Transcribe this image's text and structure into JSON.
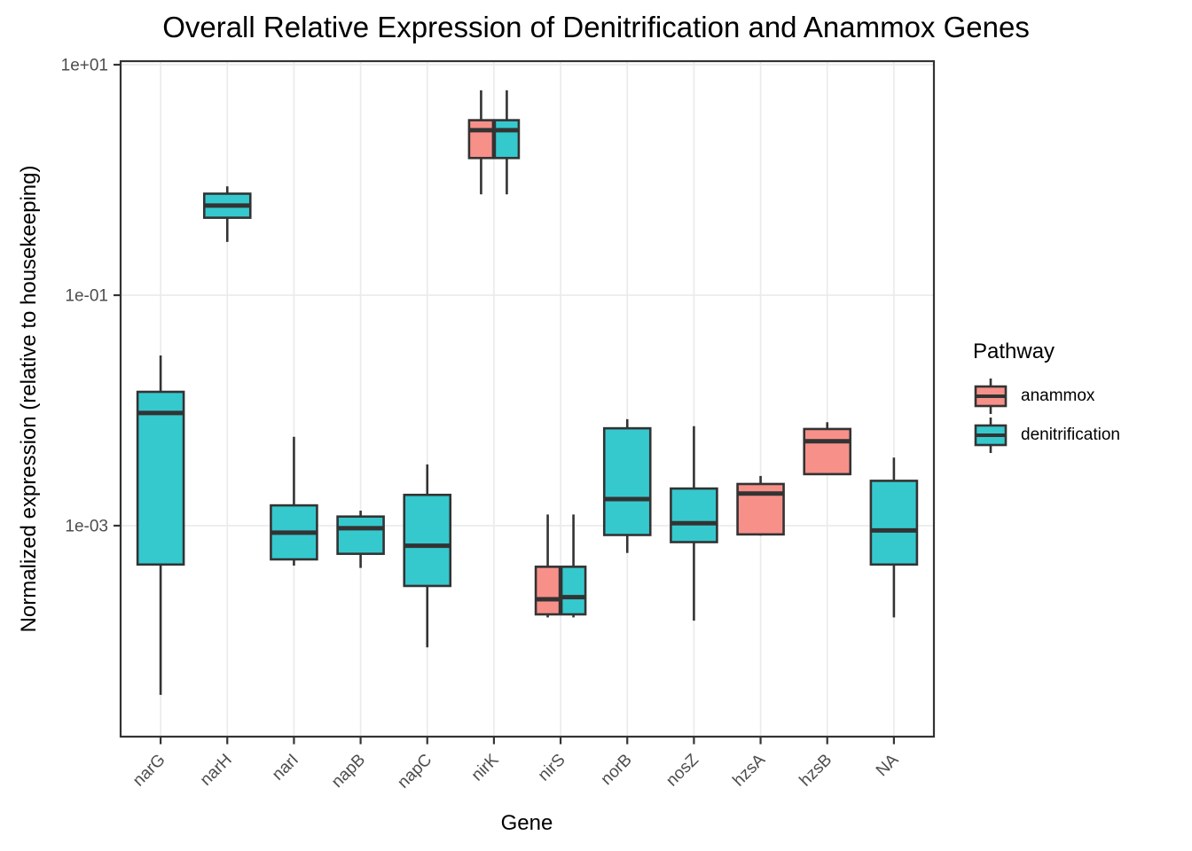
{
  "title": "Overall Relative Expression of Denitrification and Anammox Genes",
  "axes": {
    "x_title": "Gene",
    "y_title": "Normalized expression (relative to housekeeping)",
    "y_ticks": [
      {
        "label": "1e+01",
        "value": 10
      },
      {
        "label": "1e-01",
        "value": 0.1
      },
      {
        "label": "1e-03",
        "value": 0.001
      }
    ],
    "x_categories": [
      "narG",
      "narH",
      "narI",
      "napB",
      "napC",
      "nirK",
      "nirS",
      "norB",
      "nosZ",
      "hzsA",
      "hzsB",
      "NA"
    ]
  },
  "legend": {
    "title": "Pathway",
    "items": [
      {
        "label": "anammox",
        "color": "#F8908A"
      },
      {
        "label": "denitrification",
        "color": "#35C9CE"
      }
    ]
  },
  "colors": {
    "anammox": "#F8908A",
    "denitrification": "#35C9CE",
    "box_stroke": "#333333",
    "grid": "#EBEBEB",
    "panel_border": "#333333",
    "tick_text": "#4D4D4D"
  },
  "chart_data": {
    "type": "boxplot",
    "title": "Overall Relative Expression of Denitrification and Anammox Genes",
    "xlabel": "Gene",
    "ylabel": "Normalized expression (relative to housekeeping)",
    "y_scale": "log10",
    "ylim": [
      1.5e-05,
      11
    ],
    "grid": "major-only",
    "legend_position": "right",
    "categories": [
      "narG",
      "narH",
      "narI",
      "napB",
      "napC",
      "nirK",
      "nirS",
      "norB",
      "nosZ",
      "hzsA",
      "hzsB",
      "NA"
    ],
    "groups": [
      {
        "gene": "narG",
        "boxes": [
          {
            "pathway": "denitrification",
            "whisker_min": 3.4e-05,
            "q1": 0.00046,
            "median": 0.0095,
            "q3": 0.0145,
            "whisker_max": 0.03
          }
        ]
      },
      {
        "gene": "narH",
        "boxes": [
          {
            "pathway": "denitrification",
            "whisker_min": 0.29,
            "q1": 0.47,
            "median": 0.6,
            "q3": 0.76,
            "whisker_max": 0.88
          }
        ]
      },
      {
        "gene": "narI",
        "boxes": [
          {
            "pathway": "denitrification",
            "whisker_min": 0.00045,
            "q1": 0.00051,
            "median": 0.00087,
            "q3": 0.0015,
            "whisker_max": 0.0059
          }
        ]
      },
      {
        "gene": "napB",
        "boxes": [
          {
            "pathway": "denitrification",
            "whisker_min": 0.00043,
            "q1": 0.00057,
            "median": 0.00095,
            "q3": 0.0012,
            "whisker_max": 0.00135
          }
        ]
      },
      {
        "gene": "napC",
        "boxes": [
          {
            "pathway": "denitrification",
            "whisker_min": 8.8e-05,
            "q1": 0.0003,
            "median": 0.00067,
            "q3": 0.00185,
            "whisker_max": 0.0034
          }
        ]
      },
      {
        "gene": "nirK",
        "boxes": [
          {
            "pathway": "anammox",
            "whisker_min": 0.75,
            "q1": 1.55,
            "median": 2.7,
            "q3": 3.3,
            "whisker_max": 6.0
          },
          {
            "pathway": "denitrification",
            "whisker_min": 0.75,
            "q1": 1.55,
            "median": 2.7,
            "q3": 3.3,
            "whisker_max": 6.0
          }
        ]
      },
      {
        "gene": "nirS",
        "boxes": [
          {
            "pathway": "anammox",
            "whisker_min": 0.00016,
            "q1": 0.00017,
            "median": 0.00023,
            "q3": 0.00044,
            "whisker_max": 0.00125
          },
          {
            "pathway": "denitrification",
            "whisker_min": 0.00016,
            "q1": 0.00017,
            "median": 0.00024,
            "q3": 0.00044,
            "whisker_max": 0.00125
          }
        ]
      },
      {
        "gene": "norB",
        "boxes": [
          {
            "pathway": "denitrification",
            "whisker_min": 0.00058,
            "q1": 0.00083,
            "median": 0.0017,
            "q3": 0.007,
            "whisker_max": 0.0084
          }
        ]
      },
      {
        "gene": "nosZ",
        "boxes": [
          {
            "pathway": "denitrification",
            "whisker_min": 0.00015,
            "q1": 0.00072,
            "median": 0.00105,
            "q3": 0.0021,
            "whisker_max": 0.0073
          }
        ]
      },
      {
        "gene": "hzsA",
        "boxes": [
          {
            "pathway": "anammox",
            "whisker_min": 0.00082,
            "q1": 0.00084,
            "median": 0.0019,
            "q3": 0.0023,
            "whisker_max": 0.0027
          }
        ]
      },
      {
        "gene": "hzsB",
        "boxes": [
          {
            "pathway": "anammox",
            "whisker_min": 0.0028,
            "q1": 0.0028,
            "median": 0.0054,
            "q3": 0.0069,
            "whisker_max": 0.0079
          }
        ]
      },
      {
        "gene": "NA",
        "boxes": [
          {
            "pathway": "denitrification",
            "whisker_min": 0.00016,
            "q1": 0.00046,
            "median": 0.00091,
            "q3": 0.00245,
            "whisker_max": 0.0039
          }
        ]
      }
    ]
  }
}
